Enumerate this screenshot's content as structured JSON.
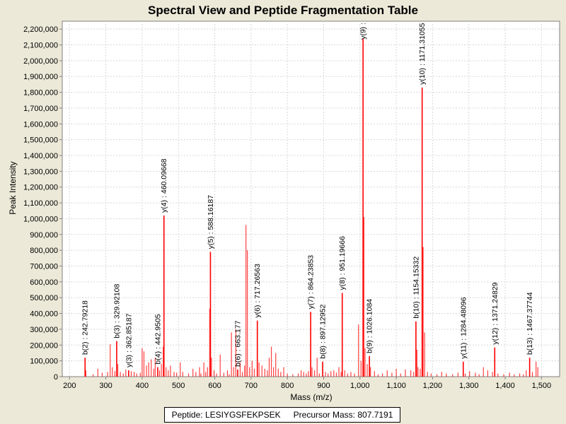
{
  "chart_data": {
    "type": "bar",
    "title": "Spectral View and Peptide Fragmentation Table",
    "xlabel": "Mass (m/z)",
    "ylabel": "Peak Intensity",
    "xlim": [
      180,
      1550
    ],
    "ylim": [
      0,
      2250000
    ],
    "x_ticks": [
      200,
      300,
      400,
      500,
      600,
      700,
      800,
      900,
      1000,
      1100,
      1200,
      1300,
      1400,
      1500
    ],
    "x_tick_labels": [
      "200",
      "300",
      "400",
      "500",
      "600",
      "700",
      "800",
      "900",
      "1,000",
      "1,100",
      "1,200",
      "1,300",
      "1,400",
      "1,500"
    ],
    "y_ticks": [
      0,
      100000,
      200000,
      300000,
      400000,
      500000,
      600000,
      700000,
      800000,
      900000,
      1000000,
      1100000,
      1200000,
      1300000,
      1400000,
      1500000,
      1600000,
      1700000,
      1800000,
      1900000,
      2000000,
      2100000,
      2200000
    ],
    "y_tick_labels": [
      "0",
      "100,000",
      "200,000",
      "300,000",
      "400,000",
      "500,000",
      "600,000",
      "700,000",
      "800,000",
      "900,000",
      "1,000,000",
      "1,100,000",
      "1,200,000",
      "1,300,000",
      "1,400,000",
      "1,500,000",
      "1,600,000",
      "1,700,000",
      "1,800,000",
      "1,900,000",
      "2,000,000",
      "2,100,000",
      "2,200,000"
    ],
    "peak_color": "#ff0000",
    "gridlines": true,
    "annotated_peaks": [
      {
        "mz": 242.79218,
        "intensity": 120000,
        "label": "b(2) : 242.79218"
      },
      {
        "mz": 329.92108,
        "intensity": 225000,
        "label": "b(3) : 329.92108"
      },
      {
        "mz": 362.85187,
        "intensity": 40000,
        "label": "y(3) : 362.85187"
      },
      {
        "mz": 442.9505,
        "intensity": 60000,
        "label": "b(4) : 442.9505"
      },
      {
        "mz": 460.09668,
        "intensity": 1020000,
        "label": "y(4) : 460.09668"
      },
      {
        "mz": 588.16187,
        "intensity": 790000,
        "label": "y(5) : 588.16187"
      },
      {
        "mz": 663.177,
        "intensity": 45000,
        "label": "b(6) : 663.177"
      },
      {
        "mz": 717.26563,
        "intensity": 355000,
        "label": "y(6) : 717.26563"
      },
      {
        "mz": 864.23853,
        "intensity": 410000,
        "label": "y(7) : 864.23853"
      },
      {
        "mz": 897.12952,
        "intensity": 95000,
        "label": "b(8) : 897.12952"
      },
      {
        "mz": 951.19666,
        "intensity": 530000,
        "label": "y(8) : 951.19666"
      },
      {
        "mz": 1008.5,
        "intensity": 2140000,
        "label": "y(9) :"
      },
      {
        "mz": 1026.1084,
        "intensity": 130000,
        "label": "b(9) : 1026.1084"
      },
      {
        "mz": 1154.15332,
        "intensity": 350000,
        "label": "b(10) : 1154.15332"
      },
      {
        "mz": 1171.31055,
        "intensity": 1830000,
        "label": "y(10) : 1171.31055"
      },
      {
        "mz": 1284.48096,
        "intensity": 95000,
        "label": "y(11) : 1284.48096"
      },
      {
        "mz": 1371.24829,
        "intensity": 185000,
        "label": "y(12) : 1371.24829"
      },
      {
        "mz": 1467.37744,
        "intensity": 120000,
        "label": "b(13) : 1467.37744"
      }
    ],
    "peaks": [
      [
        245,
        40000
      ],
      [
        265,
        15000
      ],
      [
        278,
        50000
      ],
      [
        290,
        25000
      ],
      [
        305,
        30000
      ],
      [
        312,
        205000
      ],
      [
        318,
        60000
      ],
      [
        325,
        35000
      ],
      [
        333,
        80000
      ],
      [
        340,
        30000
      ],
      [
        348,
        20000
      ],
      [
        355,
        45000
      ],
      [
        370,
        35000
      ],
      [
        378,
        30000
      ],
      [
        385,
        20000
      ],
      [
        395,
        25000
      ],
      [
        400,
        180000
      ],
      [
        405,
        160000
      ],
      [
        412,
        70000
      ],
      [
        418,
        90000
      ],
      [
        425,
        110000
      ],
      [
        432,
        50000
      ],
      [
        436,
        120000
      ],
      [
        448,
        40000
      ],
      [
        453,
        80000
      ],
      [
        458,
        190000
      ],
      [
        466,
        60000
      ],
      [
        472,
        40000
      ],
      [
        478,
        70000
      ],
      [
        488,
        30000
      ],
      [
        495,
        25000
      ],
      [
        505,
        90000
      ],
      [
        512,
        30000
      ],
      [
        528,
        20000
      ],
      [
        540,
        50000
      ],
      [
        548,
        30000
      ],
      [
        558,
        60000
      ],
      [
        562,
        20000
      ],
      [
        570,
        90000
      ],
      [
        575,
        30000
      ],
      [
        580,
        60000
      ],
      [
        586,
        430000
      ],
      [
        591,
        120000
      ],
      [
        598,
        40000
      ],
      [
        605,
        20000
      ],
      [
        615,
        140000
      ],
      [
        625,
        25000
      ],
      [
        635,
        40000
      ],
      [
        640,
        15000
      ],
      [
        646,
        280000
      ],
      [
        652,
        60000
      ],
      [
        658,
        300000
      ],
      [
        670,
        90000
      ],
      [
        676,
        30000
      ],
      [
        682,
        70000
      ],
      [
        686,
        960000
      ],
      [
        690,
        800000
      ],
      [
        696,
        60000
      ],
      [
        703,
        100000
      ],
      [
        709,
        50000
      ],
      [
        722,
        90000
      ],
      [
        730,
        70000
      ],
      [
        738,
        50000
      ],
      [
        745,
        40000
      ],
      [
        750,
        120000
      ],
      [
        756,
        190000
      ],
      [
        762,
        60000
      ],
      [
        768,
        150000
      ],
      [
        775,
        50000
      ],
      [
        782,
        30000
      ],
      [
        790,
        60000
      ],
      [
        800,
        20000
      ],
      [
        815,
        15000
      ],
      [
        830,
        20000
      ],
      [
        838,
        40000
      ],
      [
        845,
        30000
      ],
      [
        852,
        20000
      ],
      [
        858,
        35000
      ],
      [
        868,
        60000
      ],
      [
        875,
        40000
      ],
      [
        882,
        120000
      ],
      [
        888,
        20000
      ],
      [
        905,
        30000
      ],
      [
        912,
        20000
      ],
      [
        920,
        35000
      ],
      [
        928,
        40000
      ],
      [
        935,
        25000
      ],
      [
        942,
        60000
      ],
      [
        948,
        30000
      ],
      [
        958,
        40000
      ],
      [
        966,
        20000
      ],
      [
        975,
        30000
      ],
      [
        985,
        20000
      ],
      [
        996,
        330000
      ],
      [
        1003,
        100000
      ],
      [
        1011,
        1010000
      ],
      [
        1014,
        180000
      ],
      [
        1020,
        80000
      ],
      [
        1029,
        60000
      ],
      [
        1040,
        35000
      ],
      [
        1050,
        15000
      ],
      [
        1062,
        20000
      ],
      [
        1075,
        40000
      ],
      [
        1088,
        25000
      ],
      [
        1100,
        50000
      ],
      [
        1112,
        20000
      ],
      [
        1125,
        45000
      ],
      [
        1140,
        40000
      ],
      [
        1148,
        30000
      ],
      [
        1157,
        170000
      ],
      [
        1160,
        60000
      ],
      [
        1166,
        50000
      ],
      [
        1174,
        820000
      ],
      [
        1178,
        280000
      ],
      [
        1186,
        30000
      ],
      [
        1196,
        20000
      ],
      [
        1212,
        15000
      ],
      [
        1225,
        30000
      ],
      [
        1238,
        20000
      ],
      [
        1255,
        15000
      ],
      [
        1270,
        25000
      ],
      [
        1290,
        20000
      ],
      [
        1302,
        35000
      ],
      [
        1318,
        25000
      ],
      [
        1328,
        15000
      ],
      [
        1340,
        60000
      ],
      [
        1352,
        40000
      ],
      [
        1365,
        30000
      ],
      [
        1380,
        20000
      ],
      [
        1396,
        15000
      ],
      [
        1412,
        25000
      ],
      [
        1425,
        15000
      ],
      [
        1440,
        20000
      ],
      [
        1450,
        15000
      ],
      [
        1458,
        40000
      ],
      [
        1475,
        30000
      ],
      [
        1485,
        95000
      ],
      [
        1490,
        60000
      ]
    ]
  },
  "legend": {
    "peptide": "Peptide: LESIYGSFEKPSEK",
    "precursor": "Precursor Mass: 807.7191"
  }
}
